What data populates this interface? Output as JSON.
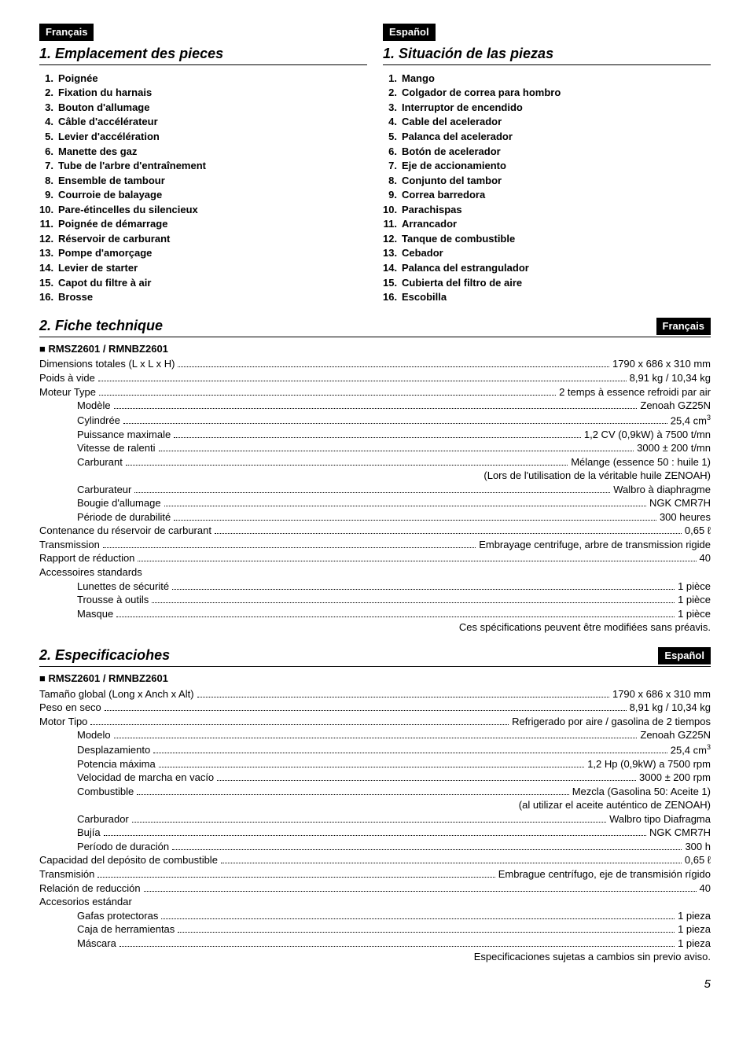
{
  "langs": {
    "fr": "Français",
    "es": "Español"
  },
  "section1": {
    "fr": "1. Emplacement des pieces",
    "es": "1. Situación de las piezas"
  },
  "section2_fr": "2. Fiche technique",
  "section2_es": "2. Especificaciohes",
  "parts_fr": [
    "Poignée",
    "Fixation du harnais",
    "Bouton d'allumage",
    "Câble d'accélérateur",
    "Levier d'accélération",
    "Manette des gaz",
    "Tube de l'arbre d'entraînement",
    "Ensemble de tambour",
    "Courroie de balayage",
    "Pare-étincelles du silencieux",
    "Poignée de démarrage",
    "Réservoir de carburant",
    "Pompe d'amorçage",
    "Levier de starter",
    "Capot du filtre à air",
    "Brosse"
  ],
  "parts_es": [
    "Mango",
    "Colgador de correa para hombro",
    "Interruptor de encendido",
    "Cable del acelerador",
    "Palanca del acelerador",
    "Botón de acelerador",
    "Eje de accionamiento",
    "Conjunto del tambor",
    "Correa barredora",
    "Parachispas",
    "Arrancador",
    "Tanque de combustible",
    "Cebador",
    "Palanca del estrangulador",
    "Cubierta del filtro de aire",
    "Escobilla"
  ],
  "model": "RMSZ2601 / RMNBZ2601",
  "specs_fr": [
    {
      "indent": 0,
      "label": "Dimensions totales (L x L x H)",
      "value": "1790 x 686 x 310 mm"
    },
    {
      "indent": 0,
      "label": "Poids à vide",
      "value": "8,91 kg / 10,34 kg"
    },
    {
      "indent": 0,
      "label": "Moteur   Type",
      "value": "2 temps à essence refroidi par air"
    },
    {
      "indent": 1,
      "label": "Modèle",
      "value": "Zenoah GZ25N"
    },
    {
      "indent": 1,
      "label": "Cylindrée",
      "value": "25,4 cm",
      "sup": "3"
    },
    {
      "indent": 1,
      "label": "Puissance maximale",
      "value": "1,2 CV (0,9kW) à 7500 t/mn"
    },
    {
      "indent": 1,
      "label": "Vitesse de ralenti",
      "value": "3000 ± 200 t/mn"
    },
    {
      "indent": 1,
      "label": "Carburant",
      "value": "Mélange (essence 50 : huile 1)"
    },
    {
      "indent": -1,
      "note": "(Lors de l'utilisation de la véritable huile ZENOAH)"
    },
    {
      "indent": 1,
      "label": "Carburateur",
      "value": "Walbro à diaphragme"
    },
    {
      "indent": 1,
      "label": "Bougie d'allumage",
      "value": "NGK CMR7H"
    },
    {
      "indent": 1,
      "label": "Période de durabilité",
      "value": "300 heures"
    },
    {
      "indent": 0,
      "label": "Contenance du réservoir de carburant",
      "value": "0,65 ℓ"
    },
    {
      "indent": 0,
      "label": "Transmission",
      "value": "Embrayage centrifuge, arbre de transmission rigide"
    },
    {
      "indent": 0,
      "label": "Rapport de réduction",
      "value": "40"
    },
    {
      "indent": 0,
      "plain": "Accessoires standards"
    },
    {
      "indent": 1,
      "label": "Lunettes de sécurité",
      "value": "1 pièce"
    },
    {
      "indent": 1,
      "label": "Trousse à outils",
      "value": "1 pièce"
    },
    {
      "indent": 1,
      "label": "Masque",
      "value": "1 pièce"
    },
    {
      "indent": -1,
      "note": "Ces spécifications peuvent être modifiées sans préavis."
    }
  ],
  "specs_es": [
    {
      "indent": 0,
      "label": "Tamaño global (Long x Anch x Alt)",
      "value": "1790 x 686 x 310 mm"
    },
    {
      "indent": 0,
      "label": "Peso en seco",
      "value": "8,91 kg / 10,34 kg"
    },
    {
      "indent": 0,
      "label": "Motor    Tipo",
      "value": "Refrigerado por aire / gasolina de 2 tiempos"
    },
    {
      "indent": 1,
      "label": "Modelo",
      "value": "Zenoah GZ25N"
    },
    {
      "indent": 1,
      "label": "Desplazamiento",
      "value": "25,4 cm",
      "sup": "3"
    },
    {
      "indent": 1,
      "label": "Potencia máxima",
      "value": "1,2 Hp (0,9kW) a 7500 rpm"
    },
    {
      "indent": 1,
      "label": "Velocidad de marcha en vacío",
      "value": "3000 ± 200 rpm"
    },
    {
      "indent": 1,
      "label": "Combustible",
      "value": "Mezcla (Gasolina 50: Aceite 1)"
    },
    {
      "indent": -1,
      "note": "(al utilizar el aceite auténtico de ZENOAH)"
    },
    {
      "indent": 1,
      "label": "Carburador",
      "value": "Walbro tipo Diafragma"
    },
    {
      "indent": 1,
      "label": "Bujía",
      "value": "NGK CMR7H"
    },
    {
      "indent": 1,
      "label": "Período de duración",
      "value": "300 h"
    },
    {
      "indent": 0,
      "label": "Capacidad del depósito de combustible",
      "value": "0,65 ℓ"
    },
    {
      "indent": 0,
      "label": "Transmisión",
      "value": "Embrague centrífugo, eje de transmisión rígido"
    },
    {
      "indent": 0,
      "label": "Relación de reducción",
      "value": "40"
    },
    {
      "indent": 0,
      "plain": "Accesorios estándar"
    },
    {
      "indent": 1,
      "label": "Gafas protectoras",
      "value": "1 pieza"
    },
    {
      "indent": 1,
      "label": "Caja de herramientas",
      "value": "1 pieza"
    },
    {
      "indent": 1,
      "label": "Máscara",
      "value": "1 pieza"
    },
    {
      "indent": -1,
      "note": "Especificaciones sujetas a cambios sin previo aviso."
    }
  ],
  "page_number": "5"
}
